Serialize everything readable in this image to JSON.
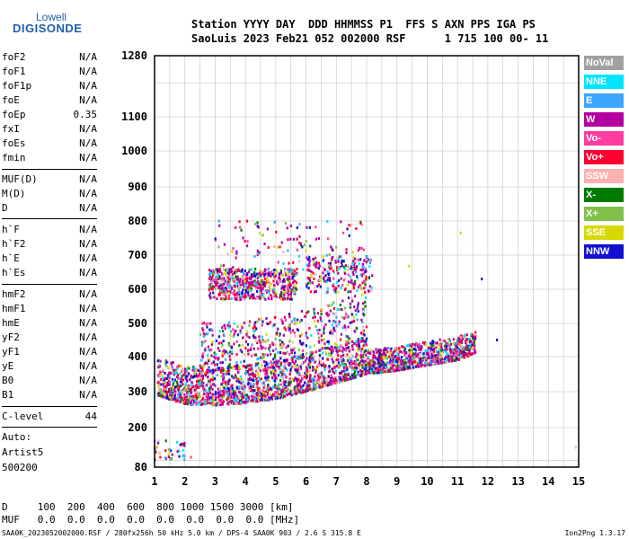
{
  "logo": {
    "top": "Lowell",
    "bottom": "DIGISONDE"
  },
  "header": {
    "line1": "Station YYYY DAY  DDD HHMMSS P1  FFS S AXN PPS IGA PS",
    "line2": "SaoLuis 2023 Feb21 052 002000 RSF      1 715 100 00- 11"
  },
  "params": [
    {
      "label": "foF2",
      "value": "N/A"
    },
    {
      "label": "foF1",
      "value": "N/A"
    },
    {
      "label": "foF1p",
      "value": "N/A"
    },
    {
      "label": "foE",
      "value": "N/A"
    },
    {
      "label": "foEp",
      "value": "0.35"
    },
    {
      "label": "fxI",
      "value": "N/A"
    },
    {
      "label": "foEs",
      "value": "N/A"
    },
    {
      "label": "fmin",
      "value": "N/A"
    },
    {
      "label": "MUF(D)",
      "value": "N/A"
    },
    {
      "label": "M(D)",
      "value": "N/A"
    },
    {
      "label": "D",
      "value": "N/A"
    },
    {
      "label": "h`F",
      "value": "N/A"
    },
    {
      "label": "h`F2",
      "value": "N/A"
    },
    {
      "label": "h`E",
      "value": "N/A"
    },
    {
      "label": "h`Es",
      "value": "N/A"
    },
    {
      "label": "hmF2",
      "value": "N/A"
    },
    {
      "label": "hmF1",
      "value": "N/A"
    },
    {
      "label": "hmE",
      "value": "N/A"
    },
    {
      "label": "yF2",
      "value": "N/A"
    },
    {
      "label": "yF1",
      "value": "N/A"
    },
    {
      "label": "yE",
      "value": "N/A"
    },
    {
      "label": "B0",
      "value": "N/A"
    },
    {
      "label": "B1",
      "value": "N/A"
    },
    {
      "label": "C-level",
      "value": "44"
    }
  ],
  "auto": {
    "line1": "Auto:",
    "line2": "Artist5",
    "line3": "500200"
  },
  "legend": [
    {
      "label": "NoVal",
      "color": "#a0a0a0"
    },
    {
      "label": "NNE",
      "color": "#00e5ff"
    },
    {
      "label": "E",
      "color": "#3aa6ff"
    },
    {
      "label": "W",
      "color": "#b4009e"
    },
    {
      "label": "Vo-",
      "color": "#ff3ca0"
    },
    {
      "label": "Vo+",
      "color": "#ff0030"
    },
    {
      "label": "SSW",
      "color": "#ffb0b0"
    },
    {
      "label": "X-",
      "color": "#007a00"
    },
    {
      "label": "X+",
      "color": "#7fc04a"
    },
    {
      "label": "SSE",
      "color": "#d8d800"
    },
    {
      "label": "NNW",
      "color": "#1010d0"
    }
  ],
  "footer": {
    "d_line": "D     100  200  400  600  800 1000 1500 3000 [km]",
    "muf_line": "MUF   0.0  0.0  0.0  0.0  0.0  0.0  0.0  0.0 [MHz]",
    "file_line": "SAA0K_2023052002000.RSF / 280fx256h 50 kHz 5.0 km / DPS-4 SAA0K 903 / 2.6 S 315.8 E",
    "version": "Ion2Png 1.3.17"
  },
  "chart_data": {
    "type": "scatter",
    "xlim": [
      1,
      15
    ],
    "ylim": [
      80,
      1280
    ],
    "x_ticks": [
      1,
      2,
      3,
      4,
      5,
      6,
      7,
      8,
      9,
      10,
      11,
      12,
      13,
      14,
      15
    ],
    "y_ticks": [
      80,
      200,
      300,
      400,
      500,
      600,
      700,
      800,
      900,
      1000,
      1100,
      1280
    ],
    "y_scale": "nonlinear",
    "grid": true,
    "legend_position": "right",
    "clusters": [
      {
        "name": "F-trace",
        "x_range": [
          1.1,
          11.6
        ],
        "lower_edge": [
          [
            1.1,
            290
          ],
          [
            2.0,
            265
          ],
          [
            3.0,
            262
          ],
          [
            4.0,
            268
          ],
          [
            5.0,
            280
          ],
          [
            6.0,
            300
          ],
          [
            7.0,
            325
          ],
          [
            8.0,
            350
          ],
          [
            9.0,
            360
          ],
          [
            10.0,
            375
          ],
          [
            11.0,
            390
          ],
          [
            11.6,
            410
          ]
        ],
        "thickness": 110
      },
      {
        "name": "spread-F",
        "x_range": [
          2.8,
          8.2
        ],
        "y_range": [
          550,
          700
        ]
      },
      {
        "name": "low-echoes",
        "x_range": [
          1.0,
          1.8
        ],
        "y_range": [
          110,
          150
        ]
      }
    ]
  }
}
